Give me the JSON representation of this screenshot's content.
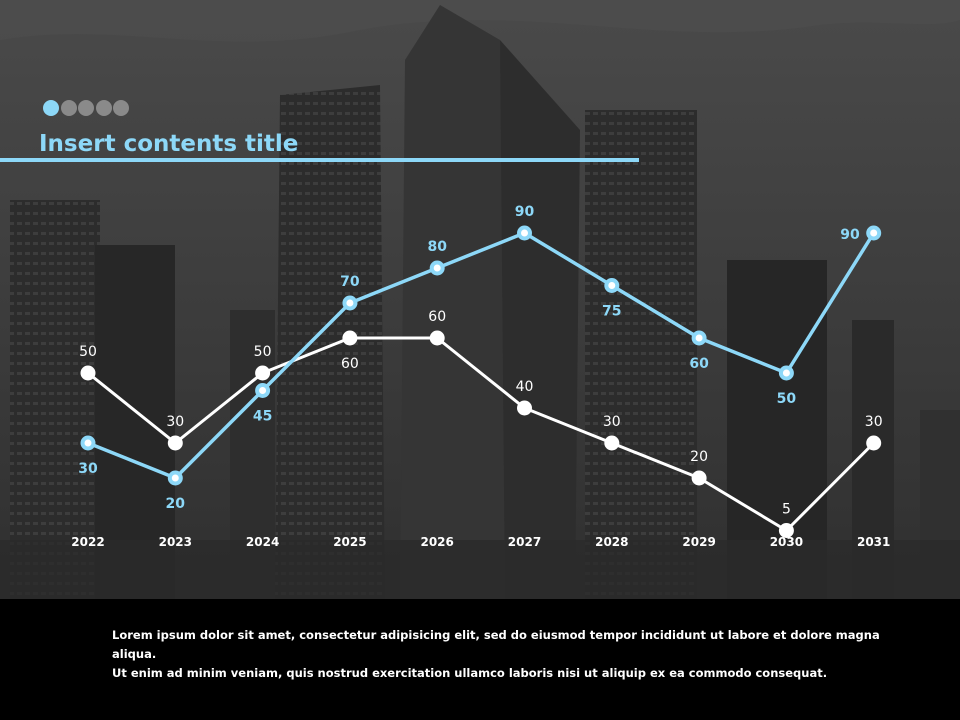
{
  "title": "Insert contents title",
  "colors": {
    "accent": "#8dd8f8",
    "secondary": "#ffffff",
    "dot_inactive": "#8a8a8a",
    "footer_bg": "#000000"
  },
  "pager": {
    "active_index": 0,
    "count": 5
  },
  "footer": {
    "line1": "Lorem ipsum dolor sit amet, consectetur adipisicing elit, sed do eiusmod tempor incididunt ut labore et dolore magna aliqua.",
    "line2": "Ut enim ad minim veniam, quis nostrud exercitation ullamco laboris nisi ut aliquip ex ea commodo consequat."
  },
  "chart_data": {
    "type": "line",
    "categories": [
      "2022",
      "2023",
      "2024",
      "2025",
      "2026",
      "2027",
      "2028",
      "2029",
      "2030",
      "2031"
    ],
    "series": [
      {
        "color": "#8dd8f8",
        "values": [
          30,
          20,
          45,
          70,
          80,
          90,
          75,
          60,
          50,
          90
        ]
      },
      {
        "color": "#ffffff",
        "values": [
          50,
          30,
          50,
          60,
          60,
          40,
          30,
          20,
          5,
          30
        ]
      }
    ],
    "ylim": [
      0,
      100
    ],
    "grid": false,
    "legend": "none"
  }
}
